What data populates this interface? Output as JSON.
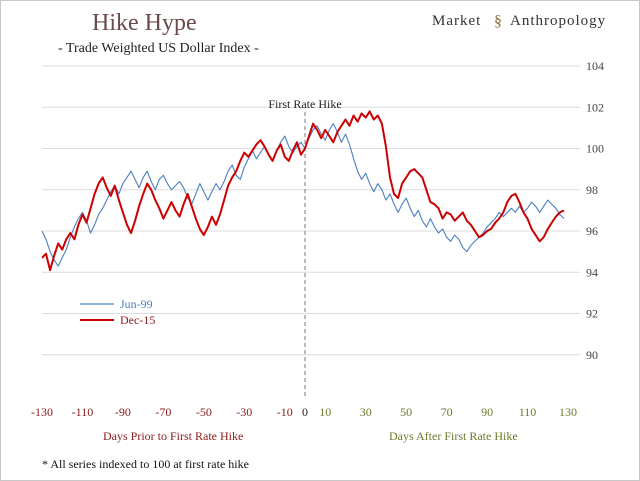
{
  "brand": {
    "first": "Market",
    "second": "Anthropology"
  },
  "chart_data": {
    "type": "line",
    "title": "Hike Hype",
    "subtitle": "- Trade Weighted US Dollar Index -",
    "annotation": "First Rate Hike",
    "left_label": "Days Prior to First Rate Hike",
    "right_label": "Days After First Rate Hike",
    "footnote": "* All series indexed to 100 at first rate hike",
    "xlim": [
      -130,
      130
    ],
    "ylim": [
      88,
      104
    ],
    "xticks": [
      -130,
      -110,
      -90,
      -70,
      -50,
      -30,
      -10,
      0,
      10,
      30,
      50,
      70,
      90,
      110,
      130
    ],
    "xtick_labels": [
      "-130",
      "-110",
      "-90",
      "-70",
      "-50",
      "-30",
      "-10",
      "0",
      "10",
      "30",
      "50",
      "70",
      "90",
      "110",
      "130"
    ],
    "yticks": [
      90,
      92,
      94,
      96,
      98,
      100,
      102,
      104
    ],
    "ytick_labels": [
      "90",
      "92",
      "94",
      "96",
      "98",
      "100",
      "102",
      "104"
    ],
    "grid": true,
    "legend_position": "left",
    "colors": {
      "prior": "#8b1a1a",
      "after": "#6b7a2a",
      "jun99": "#4a7fc1",
      "dec15": "#cc0000"
    },
    "series": [
      {
        "name": "Jun-99",
        "color": "#4a7fc1",
        "points": [
          [
            -130,
            96.0
          ],
          [
            -128,
            95.6
          ],
          [
            -126,
            95.0
          ],
          [
            -124,
            94.6
          ],
          [
            -122,
            94.3
          ],
          [
            -120,
            94.7
          ],
          [
            -118,
            95.1
          ],
          [
            -116,
            95.7
          ],
          [
            -114,
            96.2
          ],
          [
            -112,
            96.6
          ],
          [
            -110,
            96.9
          ],
          [
            -108,
            96.5
          ],
          [
            -106,
            95.9
          ],
          [
            -104,
            96.3
          ],
          [
            -102,
            96.8
          ],
          [
            -100,
            97.1
          ],
          [
            -98,
            97.5
          ],
          [
            -96,
            97.9
          ],
          [
            -94,
            98.2
          ],
          [
            -92,
            97.8
          ],
          [
            -90,
            98.3
          ],
          [
            -88,
            98.6
          ],
          [
            -86,
            98.9
          ],
          [
            -84,
            98.5
          ],
          [
            -82,
            98.1
          ],
          [
            -80,
            98.6
          ],
          [
            -78,
            98.9
          ],
          [
            -76,
            98.4
          ],
          [
            -74,
            98.0
          ],
          [
            -72,
            98.5
          ],
          [
            -70,
            98.7
          ],
          [
            -68,
            98.3
          ],
          [
            -66,
            98.0
          ],
          [
            -64,
            98.2
          ],
          [
            -62,
            98.4
          ],
          [
            -60,
            98.1
          ],
          [
            -58,
            97.6
          ],
          [
            -56,
            97.3
          ],
          [
            -54,
            97.8
          ],
          [
            -52,
            98.3
          ],
          [
            -50,
            97.9
          ],
          [
            -48,
            97.5
          ],
          [
            -46,
            97.9
          ],
          [
            -44,
            98.3
          ],
          [
            -42,
            98.0
          ],
          [
            -40,
            98.4
          ],
          [
            -38,
            98.9
          ],
          [
            -36,
            99.2
          ],
          [
            -34,
            98.7
          ],
          [
            -32,
            98.5
          ],
          [
            -30,
            99.1
          ],
          [
            -28,
            99.5
          ],
          [
            -26,
            99.9
          ],
          [
            -24,
            99.5
          ],
          [
            -22,
            99.8
          ],
          [
            -20,
            100.1
          ],
          [
            -18,
            99.7
          ],
          [
            -16,
            99.4
          ],
          [
            -14,
            99.9
          ],
          [
            -12,
            100.3
          ],
          [
            -10,
            100.6
          ],
          [
            -8,
            100.1
          ],
          [
            -6,
            99.8
          ],
          [
            -4,
            100.1
          ],
          [
            -2,
            100.3
          ],
          [
            0,
            100.0
          ],
          [
            2,
            100.5
          ],
          [
            4,
            100.9
          ],
          [
            6,
            101.1
          ],
          [
            8,
            100.7
          ],
          [
            10,
            100.4
          ],
          [
            12,
            100.9
          ],
          [
            14,
            101.2
          ],
          [
            16,
            100.8
          ],
          [
            18,
            100.3
          ],
          [
            20,
            100.7
          ],
          [
            22,
            100.2
          ],
          [
            24,
            99.5
          ],
          [
            26,
            98.9
          ],
          [
            28,
            98.5
          ],
          [
            30,
            98.8
          ],
          [
            32,
            98.3
          ],
          [
            34,
            97.9
          ],
          [
            36,
            98.3
          ],
          [
            38,
            98.0
          ],
          [
            40,
            97.5
          ],
          [
            42,
            97.8
          ],
          [
            44,
            97.3
          ],
          [
            46,
            96.9
          ],
          [
            48,
            97.3
          ],
          [
            50,
            97.6
          ],
          [
            52,
            97.1
          ],
          [
            54,
            96.7
          ],
          [
            56,
            97.0
          ],
          [
            58,
            96.5
          ],
          [
            60,
            96.2
          ],
          [
            62,
            96.6
          ],
          [
            64,
            96.2
          ],
          [
            66,
            95.9
          ],
          [
            68,
            96.1
          ],
          [
            70,
            95.7
          ],
          [
            72,
            95.5
          ],
          [
            74,
            95.8
          ],
          [
            76,
            95.6
          ],
          [
            78,
            95.2
          ],
          [
            80,
            95.0
          ],
          [
            82,
            95.3
          ],
          [
            84,
            95.5
          ],
          [
            86,
            95.7
          ],
          [
            88,
            95.9
          ],
          [
            90,
            96.2
          ],
          [
            92,
            96.4
          ],
          [
            94,
            96.6
          ],
          [
            96,
            96.9
          ],
          [
            98,
            96.7
          ],
          [
            100,
            96.9
          ],
          [
            102,
            97.1
          ],
          [
            104,
            96.9
          ],
          [
            106,
            97.2
          ],
          [
            108,
            96.9
          ],
          [
            110,
            97.1
          ],
          [
            112,
            97.4
          ],
          [
            114,
            97.2
          ],
          [
            116,
            96.9
          ],
          [
            118,
            97.2
          ],
          [
            120,
            97.5
          ],
          [
            122,
            97.3
          ],
          [
            124,
            97.1
          ],
          [
            126,
            96.8
          ],
          [
            128,
            96.6
          ]
        ]
      },
      {
        "name": "Dec-15",
        "color": "#cc0000",
        "points": [
          [
            -130,
            94.7
          ],
          [
            -128,
            94.9
          ],
          [
            -126,
            94.1
          ],
          [
            -124,
            94.8
          ],
          [
            -122,
            95.4
          ],
          [
            -120,
            95.1
          ],
          [
            -118,
            95.6
          ],
          [
            -116,
            95.9
          ],
          [
            -114,
            95.6
          ],
          [
            -112,
            96.3
          ],
          [
            -110,
            96.8
          ],
          [
            -108,
            96.4
          ],
          [
            -106,
            97.1
          ],
          [
            -104,
            97.8
          ],
          [
            -102,
            98.3
          ],
          [
            -100,
            98.6
          ],
          [
            -98,
            98.1
          ],
          [
            -96,
            97.7
          ],
          [
            -94,
            98.2
          ],
          [
            -92,
            97.5
          ],
          [
            -90,
            96.9
          ],
          [
            -88,
            96.3
          ],
          [
            -86,
            95.9
          ],
          [
            -84,
            96.5
          ],
          [
            -82,
            97.2
          ],
          [
            -80,
            97.8
          ],
          [
            -78,
            98.3
          ],
          [
            -76,
            98.0
          ],
          [
            -74,
            97.5
          ],
          [
            -72,
            97.1
          ],
          [
            -70,
            96.6
          ],
          [
            -68,
            97.0
          ],
          [
            -66,
            97.4
          ],
          [
            -64,
            97.0
          ],
          [
            -62,
            96.7
          ],
          [
            -60,
            97.3
          ],
          [
            -58,
            97.8
          ],
          [
            -56,
            97.2
          ],
          [
            -54,
            96.6
          ],
          [
            -52,
            96.1
          ],
          [
            -50,
            95.8
          ],
          [
            -48,
            96.2
          ],
          [
            -46,
            96.7
          ],
          [
            -44,
            96.3
          ],
          [
            -42,
            96.8
          ],
          [
            -40,
            97.5
          ],
          [
            -38,
            98.2
          ],
          [
            -36,
            98.6
          ],
          [
            -34,
            98.9
          ],
          [
            -32,
            99.4
          ],
          [
            -30,
            99.8
          ],
          [
            -28,
            99.6
          ],
          [
            -26,
            99.9
          ],
          [
            -24,
            100.2
          ],
          [
            -22,
            100.4
          ],
          [
            -20,
            100.1
          ],
          [
            -18,
            99.7
          ],
          [
            -16,
            99.4
          ],
          [
            -14,
            99.9
          ],
          [
            -12,
            100.2
          ],
          [
            -10,
            99.6
          ],
          [
            -8,
            99.4
          ],
          [
            -6,
            99.9
          ],
          [
            -4,
            100.3
          ],
          [
            -2,
            99.7
          ],
          [
            0,
            100.0
          ],
          [
            2,
            100.6
          ],
          [
            4,
            101.2
          ],
          [
            6,
            100.9
          ],
          [
            8,
            100.5
          ],
          [
            10,
            100.9
          ],
          [
            12,
            100.6
          ],
          [
            14,
            100.3
          ],
          [
            16,
            100.8
          ],
          [
            18,
            101.1
          ],
          [
            20,
            101.4
          ],
          [
            22,
            101.1
          ],
          [
            24,
            101.6
          ],
          [
            26,
            101.3
          ],
          [
            28,
            101.7
          ],
          [
            30,
            101.5
          ],
          [
            32,
            101.8
          ],
          [
            34,
            101.4
          ],
          [
            36,
            101.6
          ],
          [
            38,
            101.2
          ],
          [
            40,
            100.1
          ],
          [
            42,
            98.6
          ],
          [
            44,
            97.8
          ],
          [
            46,
            97.6
          ],
          [
            48,
            98.3
          ],
          [
            50,
            98.6
          ],
          [
            52,
            98.9
          ],
          [
            54,
            99.0
          ],
          [
            56,
            98.8
          ],
          [
            58,
            98.6
          ],
          [
            60,
            98.0
          ],
          [
            62,
            97.4
          ],
          [
            64,
            97.3
          ],
          [
            66,
            97.1
          ],
          [
            68,
            96.6
          ],
          [
            70,
            96.9
          ],
          [
            72,
            96.8
          ],
          [
            74,
            96.5
          ],
          [
            76,
            96.7
          ],
          [
            78,
            96.9
          ],
          [
            80,
            96.5
          ],
          [
            82,
            96.3
          ],
          [
            84,
            96.0
          ],
          [
            86,
            95.7
          ],
          [
            88,
            95.8
          ],
          [
            90,
            96.0
          ],
          [
            92,
            96.1
          ],
          [
            94,
            96.4
          ],
          [
            96,
            96.6
          ],
          [
            98,
            96.9
          ],
          [
            100,
            97.4
          ],
          [
            102,
            97.7
          ],
          [
            104,
            97.8
          ],
          [
            106,
            97.4
          ],
          [
            108,
            96.9
          ],
          [
            110,
            96.6
          ],
          [
            112,
            96.1
          ],
          [
            114,
            95.8
          ],
          [
            116,
            95.5
          ],
          [
            118,
            95.7
          ],
          [
            120,
            96.1
          ],
          [
            122,
            96.4
          ],
          [
            124,
            96.7
          ],
          [
            126,
            96.9
          ],
          [
            128,
            97.0
          ]
        ]
      }
    ]
  }
}
